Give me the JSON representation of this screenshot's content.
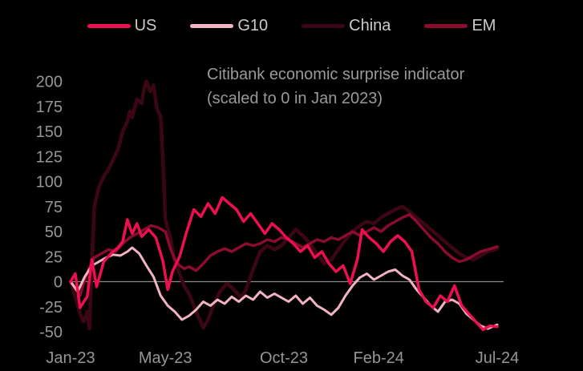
{
  "colors": {
    "background": "#000000",
    "axis_text": "#969696",
    "title_text": "#9a9a9a",
    "legend_text": "#cbcbcb",
    "zero_line": "#8a8a8a"
  },
  "chart_data": {
    "type": "line",
    "title_line1": "Citibank economic surprise indicator",
    "title_line2": "(scaled to 0 in Jan 2023)",
    "legend_position": "top",
    "grid": false,
    "zero_line": true,
    "x_axis": {
      "unit": "months since Jan 2023",
      "range": [
        0,
        18
      ],
      "ticks": [
        {
          "label": "Jan-23",
          "m": 0
        },
        {
          "label": "May-23",
          "m": 4
        },
        {
          "label": "Oct-23",
          "m": 9
        },
        {
          "label": "Feb-24",
          "m": 13
        },
        {
          "label": "Jul-24",
          "m": 18
        }
      ]
    },
    "y_axis": {
      "range": [
        -50,
        200
      ],
      "ticks": [
        200,
        175,
        150,
        125,
        100,
        75,
        50,
        25,
        0,
        -25,
        -50
      ]
    },
    "series": [
      {
        "name": "US",
        "color": "#ed0f4f",
        "points": [
          [
            0,
            0
          ],
          [
            0.2,
            8
          ],
          [
            0.4,
            -26
          ],
          [
            0.7,
            -15
          ],
          [
            0.9,
            22
          ],
          [
            1.1,
            -5
          ],
          [
            1.4,
            20
          ],
          [
            1.7,
            28
          ],
          [
            2,
            34
          ],
          [
            2.2,
            40
          ],
          [
            2.4,
            62
          ],
          [
            2.6,
            48
          ],
          [
            2.8,
            58
          ],
          [
            3,
            45
          ],
          [
            3.3,
            52
          ],
          [
            3.6,
            44
          ],
          [
            3.9,
            20
          ],
          [
            4.1,
            -8
          ],
          [
            4.3,
            10
          ],
          [
            4.6,
            25
          ],
          [
            4.9,
            50
          ],
          [
            5.2,
            72
          ],
          [
            5.5,
            65
          ],
          [
            5.8,
            78
          ],
          [
            6.1,
            68
          ],
          [
            6.4,
            84
          ],
          [
            6.7,
            78
          ],
          [
            7,
            72
          ],
          [
            7.3,
            60
          ],
          [
            7.6,
            68
          ],
          [
            7.9,
            58
          ],
          [
            8.2,
            48
          ],
          [
            8.5,
            58
          ],
          [
            8.8,
            52
          ],
          [
            9.1,
            44
          ],
          [
            9.4,
            38
          ],
          [
            9.7,
            30
          ],
          [
            10,
            36
          ],
          [
            10.3,
            24
          ],
          [
            10.6,
            30
          ],
          [
            10.9,
            18
          ],
          [
            11.2,
            10
          ],
          [
            11.5,
            16
          ],
          [
            11.8,
            -2
          ],
          [
            12.1,
            22
          ],
          [
            12.3,
            52
          ],
          [
            12.6,
            44
          ],
          [
            12.9,
            38
          ],
          [
            13.2,
            30
          ],
          [
            13.5,
            40
          ],
          [
            13.8,
            46
          ],
          [
            14.1,
            40
          ],
          [
            14.4,
            30
          ],
          [
            14.7,
            -8
          ],
          [
            15,
            -20
          ],
          [
            15.3,
            -26
          ],
          [
            15.6,
            -14
          ],
          [
            15.9,
            -20
          ],
          [
            16.2,
            -4
          ],
          [
            16.5,
            -24
          ],
          [
            16.8,
            -32
          ],
          [
            17.1,
            -40
          ],
          [
            17.4,
            -48
          ],
          [
            17.7,
            -44
          ],
          [
            18,
            -45
          ]
        ]
      },
      {
        "name": "G10",
        "color": "#f2b4c2",
        "points": [
          [
            0,
            0
          ],
          [
            0.3,
            -10
          ],
          [
            0.6,
            5
          ],
          [
            0.9,
            16
          ],
          [
            1.2,
            20
          ],
          [
            1.5,
            24
          ],
          [
            1.8,
            27
          ],
          [
            2.1,
            26
          ],
          [
            2.4,
            30
          ],
          [
            2.6,
            34
          ],
          [
            2.9,
            28
          ],
          [
            3.2,
            16
          ],
          [
            3.5,
            5
          ],
          [
            3.8,
            -14
          ],
          [
            4.1,
            -24
          ],
          [
            4.4,
            -30
          ],
          [
            4.7,
            -38
          ],
          [
            5,
            -34
          ],
          [
            5.3,
            -28
          ],
          [
            5.6,
            -20
          ],
          [
            5.9,
            -24
          ],
          [
            6.2,
            -18
          ],
          [
            6.5,
            -22
          ],
          [
            6.8,
            -15
          ],
          [
            7.1,
            -20
          ],
          [
            7.4,
            -14
          ],
          [
            7.7,
            -18
          ],
          [
            8,
            -10
          ],
          [
            8.3,
            -16
          ],
          [
            8.6,
            -12
          ],
          [
            8.9,
            -16
          ],
          [
            9.2,
            -20
          ],
          [
            9.5,
            -14
          ],
          [
            9.8,
            -22
          ],
          [
            10.1,
            -16
          ],
          [
            10.4,
            -24
          ],
          [
            10.7,
            -28
          ],
          [
            11,
            -33
          ],
          [
            11.3,
            -26
          ],
          [
            11.6,
            -14
          ],
          [
            11.9,
            -4
          ],
          [
            12.2,
            4
          ],
          [
            12.5,
            8
          ],
          [
            12.8,
            2
          ],
          [
            13.1,
            6
          ],
          [
            13.4,
            10
          ],
          [
            13.7,
            12
          ],
          [
            14,
            6
          ],
          [
            14.3,
            2
          ],
          [
            14.6,
            -8
          ],
          [
            14.9,
            -16
          ],
          [
            15.2,
            -24
          ],
          [
            15.5,
            -30
          ],
          [
            15.8,
            -20
          ],
          [
            16.1,
            -18
          ],
          [
            16.4,
            -22
          ],
          [
            16.7,
            -32
          ],
          [
            17,
            -38
          ],
          [
            17.3,
            -44
          ],
          [
            17.6,
            -47
          ],
          [
            18,
            -43
          ]
        ]
      },
      {
        "name": "China",
        "color": "#3c0715",
        "points": [
          [
            0,
            0
          ],
          [
            0.2,
            -15
          ],
          [
            0.4,
            -32
          ],
          [
            0.55,
            -40
          ],
          [
            0.7,
            -30
          ],
          [
            0.8,
            -47
          ],
          [
            0.9,
            20
          ],
          [
            1,
            75
          ],
          [
            1.2,
            95
          ],
          [
            1.4,
            105
          ],
          [
            1.6,
            112
          ],
          [
            1.8,
            122
          ],
          [
            2,
            132
          ],
          [
            2.2,
            150
          ],
          [
            2.4,
            160
          ],
          [
            2.5,
            170
          ],
          [
            2.6,
            164
          ],
          [
            2.8,
            182
          ],
          [
            3,
            178
          ],
          [
            3.1,
            192
          ],
          [
            3.2,
            200
          ],
          [
            3.35,
            190
          ],
          [
            3.5,
            196
          ],
          [
            3.65,
            172
          ],
          [
            3.8,
            165
          ],
          [
            3.9,
            120
          ],
          [
            4,
            62
          ],
          [
            4.2,
            45
          ],
          [
            4.4,
            20
          ],
          [
            4.6,
            8
          ],
          [
            4.8,
            -5
          ],
          [
            5,
            -12
          ],
          [
            5.3,
            -30
          ],
          [
            5.6,
            -46
          ],
          [
            5.8,
            -38
          ],
          [
            6,
            -25
          ],
          [
            6.3,
            -10
          ],
          [
            6.6,
            -2
          ],
          [
            6.9,
            -8
          ],
          [
            7.2,
            -16
          ],
          [
            7.4,
            -8
          ],
          [
            7.7,
            12
          ],
          [
            8,
            30
          ],
          [
            8.3,
            36
          ],
          [
            8.6,
            32
          ],
          [
            8.9,
            36
          ],
          [
            9.2,
            44
          ],
          [
            9.5,
            52
          ],
          [
            9.8,
            46
          ],
          [
            10.1,
            38
          ],
          [
            10.4,
            28
          ],
          [
            10.7,
            18
          ],
          [
            11,
            22
          ],
          [
            11.3,
            32
          ],
          [
            11.6,
            42
          ],
          [
            11.9,
            50
          ],
          [
            12.2,
            56
          ],
          [
            12.5,
            60
          ],
          [
            12.8,
            58
          ],
          [
            13.1,
            64
          ],
          [
            13.4,
            68
          ],
          [
            13.7,
            72
          ],
          [
            14,
            75
          ],
          [
            14.3,
            70
          ],
          [
            14.6,
            64
          ],
          [
            14.9,
            58
          ],
          [
            15.2,
            52
          ],
          [
            15.5,
            46
          ],
          [
            15.8,
            40
          ],
          [
            16.1,
            34
          ],
          [
            16.4,
            28
          ],
          [
            16.7,
            24
          ],
          [
            17,
            22
          ],
          [
            17.3,
            26
          ],
          [
            17.6,
            30
          ],
          [
            18,
            33
          ]
        ]
      },
      {
        "name": "EM",
        "color": "#8c0c30",
        "points": [
          [
            0,
            0
          ],
          [
            0.2,
            -6
          ],
          [
            0.4,
            -14
          ],
          [
            0.6,
            2
          ],
          [
            0.8,
            14
          ],
          [
            1,
            24
          ],
          [
            1.3,
            28
          ],
          [
            1.6,
            32
          ],
          [
            1.9,
            30
          ],
          [
            2.2,
            38
          ],
          [
            2.5,
            44
          ],
          [
            2.8,
            48
          ],
          [
            3.1,
            52
          ],
          [
            3.4,
            56
          ],
          [
            3.7,
            54
          ],
          [
            4,
            50
          ],
          [
            4.2,
            34
          ],
          [
            4.4,
            22
          ],
          [
            4.6,
            16
          ],
          [
            4.8,
            13
          ],
          [
            5,
            15
          ],
          [
            5.3,
            11
          ],
          [
            5.6,
            18
          ],
          [
            5.9,
            26
          ],
          [
            6.2,
            30
          ],
          [
            6.5,
            33
          ],
          [
            6.8,
            30
          ],
          [
            7.1,
            34
          ],
          [
            7.4,
            38
          ],
          [
            7.7,
            36
          ],
          [
            8,
            38
          ],
          [
            8.3,
            42
          ],
          [
            8.6,
            40
          ],
          [
            8.9,
            44
          ],
          [
            9.2,
            42
          ],
          [
            9.5,
            38
          ],
          [
            9.8,
            34
          ],
          [
            10.1,
            38
          ],
          [
            10.4,
            42
          ],
          [
            10.7,
            40
          ],
          [
            11,
            44
          ],
          [
            11.3,
            42
          ],
          [
            11.6,
            46
          ],
          [
            11.9,
            50
          ],
          [
            12.2,
            46
          ],
          [
            12.5,
            50
          ],
          [
            12.8,
            54
          ],
          [
            13.1,
            50
          ],
          [
            13.4,
            56
          ],
          [
            13.7,
            60
          ],
          [
            14,
            64
          ],
          [
            14.3,
            67
          ],
          [
            14.6,
            60
          ],
          [
            14.9,
            52
          ],
          [
            15.2,
            44
          ],
          [
            15.5,
            38
          ],
          [
            15.8,
            30
          ],
          [
            16.1,
            24
          ],
          [
            16.4,
            20
          ],
          [
            16.7,
            22
          ],
          [
            17,
            26
          ],
          [
            17.3,
            30
          ],
          [
            17.6,
            32
          ],
          [
            18,
            35
          ]
        ]
      }
    ]
  }
}
